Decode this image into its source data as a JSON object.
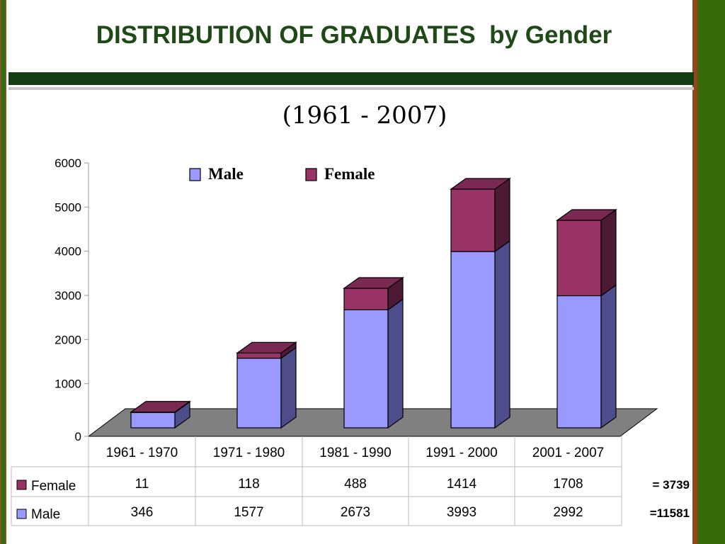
{
  "slide": {
    "title": "DISTRIBUTION OF GRADUATES  by Gender",
    "subtitle": "(1961 - 2007)"
  },
  "colors": {
    "male_front": "#9999ff",
    "male_side": "#4d4d8c",
    "male_top": "#7a7acc",
    "female_front": "#993366",
    "female_side": "#4d1a33",
    "female_top": "#7a2952",
    "floor": "#808080",
    "title": "#1f4a18"
  },
  "chart_data": {
    "type": "bar",
    "stacked": true,
    "three_d": true,
    "categories": [
      "1961 - 1970",
      "1971 - 1980",
      "1981 - 1990",
      "1991 - 2000",
      "2001 - 2007"
    ],
    "series": [
      {
        "name": "Male",
        "values": [
          346,
          1577,
          2673,
          3993,
          2992
        ]
      },
      {
        "name": "Female",
        "values": [
          11,
          118,
          488,
          1414,
          1708
        ]
      }
    ],
    "ylim": [
      0,
      6000
    ],
    "yticks": [
      "0",
      "1000",
      "2000",
      "3000",
      "4000",
      "5000",
      "6000"
    ],
    "legend_placement": "top",
    "data_table": {
      "rows": [
        {
          "series": "Female",
          "total": "= 3739"
        },
        {
          "series": "Male",
          "total": "=11581"
        }
      ]
    }
  }
}
